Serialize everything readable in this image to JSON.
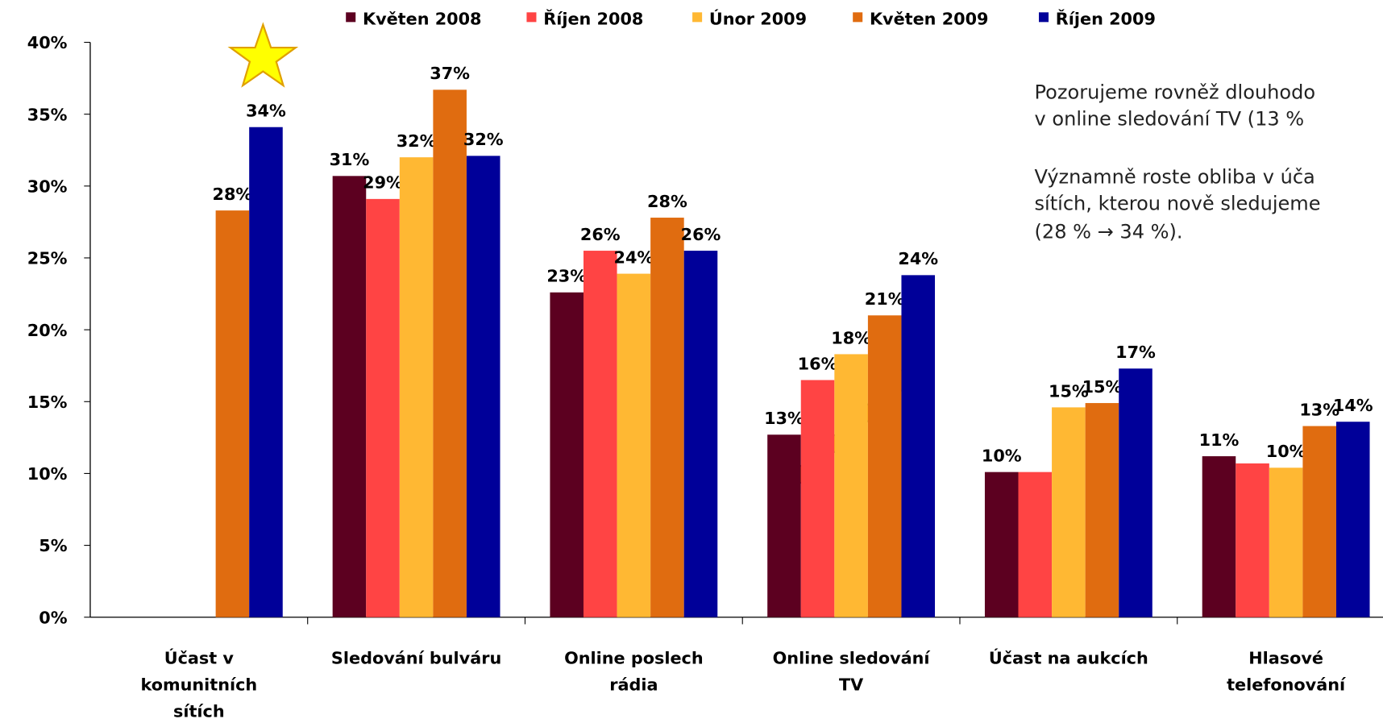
{
  "chart_data": {
    "type": "bar",
    "categories": [
      "Účast v\nkomunitních\nsítích",
      "Sledování bulváru",
      "Online poslech\nrádia",
      "Online sledování\nTV",
      "Účast na aukcích",
      "Hlasové\ntelefonování"
    ],
    "series": [
      {
        "name": "Květen 2008",
        "color": "#5c0020",
        "values": [
          null,
          30.7,
          22.6,
          12.7,
          10.1,
          11.2
        ],
        "value_labels": [
          null,
          "31%",
          "23%",
          "13%",
          "10%",
          "11%"
        ]
      },
      {
        "name": "Říjen 2008",
        "color": "#ff4444",
        "values": [
          null,
          29.1,
          25.5,
          16.5,
          10.1,
          10.7
        ],
        "value_labels": [
          null,
          "29%",
          "26%",
          "16%",
          null,
          null
        ]
      },
      {
        "name": "Únor 2009",
        "color": "#ffb833",
        "values": [
          null,
          32.0,
          23.9,
          18.3,
          14.6,
          10.4
        ],
        "value_labels": [
          null,
          "32%",
          "24%",
          "18%",
          "15%",
          "10%"
        ]
      },
      {
        "name": "Květen 2009",
        "color": "#e06c10",
        "values": [
          28.3,
          36.7,
          27.8,
          21.0,
          14.9,
          13.3
        ],
        "value_labels": [
          "28%",
          "37%",
          "28%",
          "21%",
          "15%",
          "13%"
        ]
      },
      {
        "name": "Říjen 2009",
        "color": "#000099",
        "values": [
          34.1,
          32.1,
          25.5,
          23.8,
          17.3,
          13.6
        ],
        "value_labels": [
          "34%",
          "32%",
          "26%",
          "24%",
          "17%",
          "14%"
        ]
      }
    ],
    "ylim": [
      0,
      40
    ],
    "yticks": [
      {
        "value": 0,
        "label": "0%"
      },
      {
        "value": 5,
        "label": "5%"
      },
      {
        "value": 10,
        "label": "10%"
      },
      {
        "value": 15,
        "label": "15%"
      },
      {
        "value": 20,
        "label": "20%"
      },
      {
        "value": 25,
        "label": "25%"
      },
      {
        "value": 30,
        "label": "30%"
      },
      {
        "value": 35,
        "label": "35%"
      },
      {
        "value": 40,
        "label": "40%"
      }
    ],
    "grid": false,
    "legend": "top",
    "annotations": [
      "Pozorujeme rovněž dlouhodo",
      "v online sledování TV (13 %",
      "Významně roste obliba v úča",
      "sítích, kterou nově sledujeme",
      "(28 % → 34 %)."
    ]
  }
}
